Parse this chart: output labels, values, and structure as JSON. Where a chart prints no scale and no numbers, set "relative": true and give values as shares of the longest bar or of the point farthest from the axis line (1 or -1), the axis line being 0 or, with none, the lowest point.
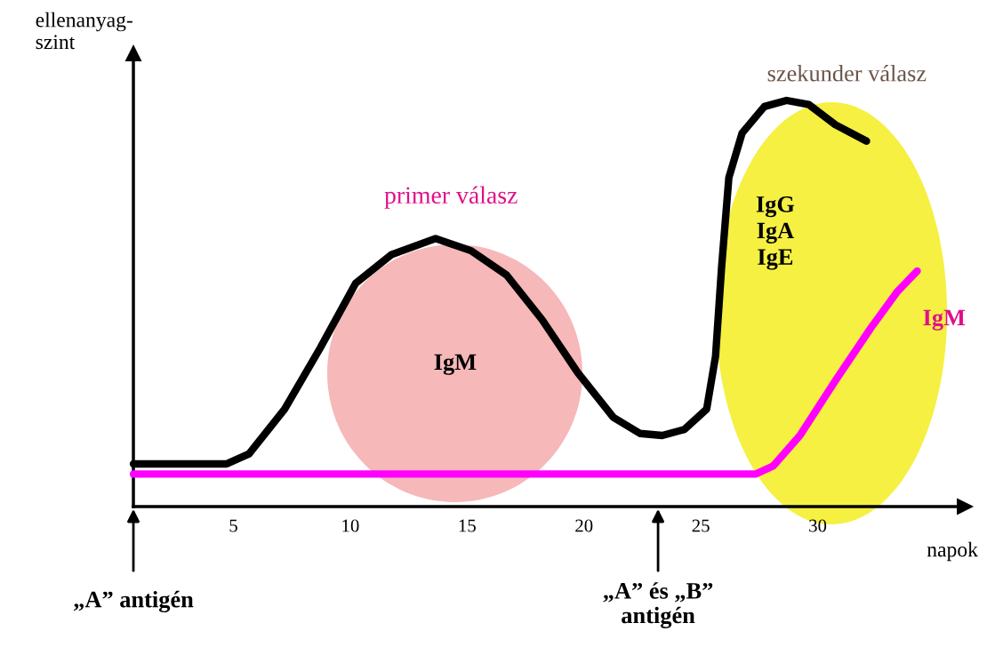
{
  "chart_data": {
    "type": "line",
    "relative": true,
    "xlabel": "napok",
    "ylabel": "ellenanyag-\nszint",
    "xlim": [
      0.72,
      36.3
    ],
    "xticks": [
      5,
      10,
      15,
      20,
      25,
      30
    ],
    "grid": false,
    "marker": "none",
    "line_style": "solid",
    "series": [
      {
        "color": "#000000",
        "x": [
          0.72,
          4.71,
          5.67,
          7.19,
          8.71,
          10.23,
          11.75,
          13.65,
          15.17,
          16.69,
          18.21,
          19.73,
          21.25,
          22.4,
          23.35,
          24.3,
          25.25,
          25.63,
          25.89,
          26.2,
          26.77,
          27.72,
          28.67,
          29.62,
          30.76,
          32.09
        ],
        "values": [
          0.105,
          0.105,
          0.13,
          0.24,
          0.39,
          0.55,
          0.62,
          0.66,
          0.63,
          0.57,
          0.46,
          0.33,
          0.22,
          0.18,
          0.175,
          0.19,
          0.24,
          0.37,
          0.59,
          0.81,
          0.92,
          0.985,
          1.0,
          0.99,
          0.94,
          0.9
        ]
      },
      {
        "color": "#ff00ff",
        "x": [
          0.72,
          27.34,
          28.1,
          29.24,
          30.76,
          32.28,
          33.42,
          34.26
        ],
        "values": [
          0.08,
          0.08,
          0.1,
          0.175,
          0.31,
          0.44,
          0.53,
          0.58
        ]
      }
    ],
    "annotations": [
      "primer válasz",
      "IgM",
      "IgG\nIgA\nIgE",
      "IgM",
      "szekunder válasz",
      "„A” antigén",
      "„A” és „B”\nantigén"
    ]
  }
}
